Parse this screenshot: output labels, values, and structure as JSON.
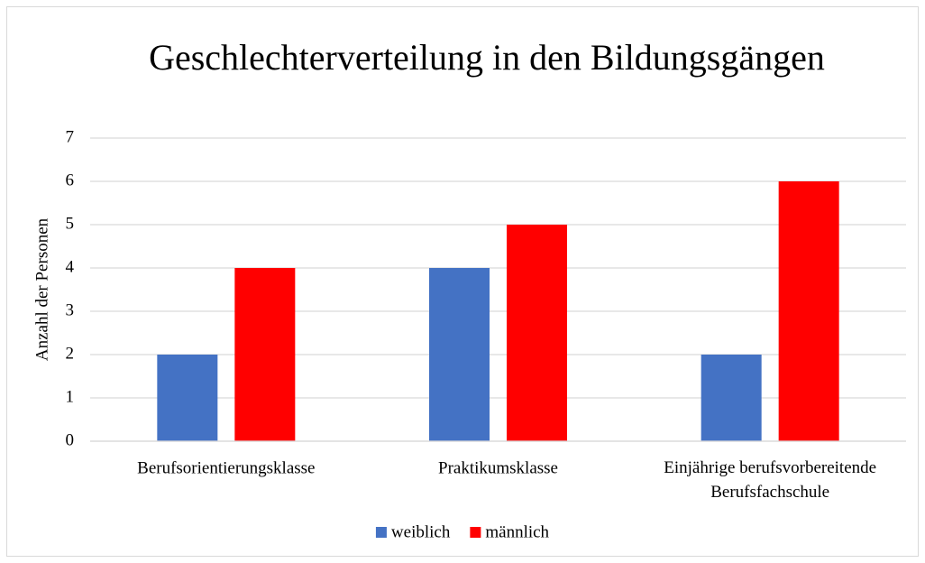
{
  "chart_data": {
    "type": "bar",
    "title": "Geschlechterverteilung in den Bildungsgängen",
    "y_label": "Anzahl der Personen",
    "categories": [
      "Berufsorientierungsklasse",
      "Praktikumsklasse",
      "Einjährige berufsvorbereitende Berufsfachschule"
    ],
    "series": [
      {
        "name": "weiblich",
        "color": "#4472c4",
        "values": [
          2,
          4,
          2
        ]
      },
      {
        "name": "männlich",
        "color": "#ff0000",
        "values": [
          4,
          5,
          6
        ]
      }
    ],
    "ylim": [
      0,
      7
    ],
    "yticks": [
      0,
      1,
      2,
      3,
      4,
      5,
      6,
      7
    ],
    "grid": true,
    "legend": "bottom"
  }
}
